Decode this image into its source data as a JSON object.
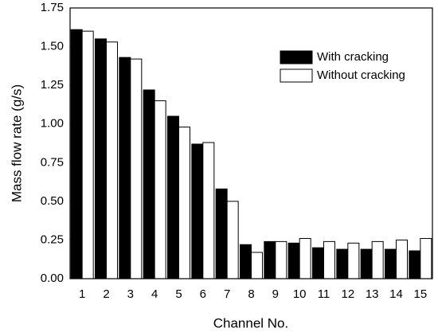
{
  "chart_data": {
    "type": "bar",
    "x_label": "Channel No.",
    "y_label": "Mass flow rate (g/s)",
    "categories": [
      "1",
      "2",
      "3",
      "4",
      "5",
      "6",
      "7",
      "8",
      "9",
      "10",
      "11",
      "12",
      "13",
      "14",
      "15"
    ],
    "series": [
      {
        "name": "With cracking",
        "color": "#000000",
        "values": [
          1.61,
          1.55,
          1.43,
          1.22,
          1.05,
          0.87,
          0.58,
          0.22,
          0.24,
          0.23,
          0.2,
          0.19,
          0.19,
          0.19,
          0.18
        ]
      },
      {
        "name": "Without cracking",
        "color": "#ffffff",
        "values": [
          1.6,
          1.53,
          1.42,
          1.15,
          0.98,
          0.88,
          0.5,
          0.17,
          0.24,
          0.26,
          0.24,
          0.23,
          0.24,
          0.25,
          0.26
        ]
      }
    ],
    "ylim": [
      0,
      1.75
    ],
    "yticks": [
      {
        "value": 0,
        "label": "0.00"
      },
      0.25,
      {
        "value": 0.5,
        "label": "0.50"
      },
      0.75,
      {
        "value": 1,
        "label": "1.00"
      },
      1.25,
      {
        "value": 1.5,
        "label": "1.50"
      },
      1.75
    ],
    "legend": "upper right"
  }
}
